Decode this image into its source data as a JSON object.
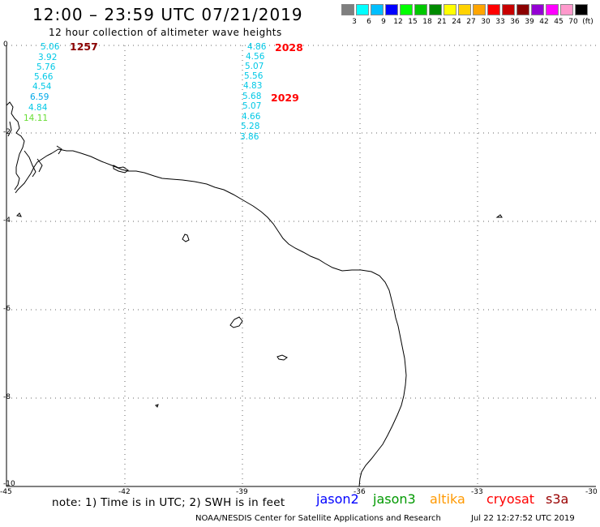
{
  "header": {
    "title": "12:00 – 23:59 UTC 07/21/2019",
    "subtitle": "12 hour collection of altimeter wave heights"
  },
  "scale": {
    "colors": [
      "#7f7f7f",
      "#00ffff",
      "#00bfff",
      "#0000ff",
      "#00ff00",
      "#00c800",
      "#008a00",
      "#ffff00",
      "#ffd200",
      "#ffa500",
      "#ff0000",
      "#c80000",
      "#8b0000",
      "#9400d3",
      "#ff00ff",
      "#ff99cc",
      "#000000"
    ],
    "labels": [
      "3",
      "6",
      "9",
      "12",
      "15",
      "18",
      "21",
      "24",
      "27",
      "30",
      "33",
      "36",
      "39",
      "42",
      "45",
      "70",
      "(ft)"
    ]
  },
  "axes": {
    "y_labels": [
      "0",
      "-2",
      "-4",
      "-6",
      "-8",
      "-10"
    ],
    "x_labels": [
      "-45",
      "-42",
      "-39",
      "-36",
      "-33",
      "-30"
    ]
  },
  "tracks": [
    {
      "time": "1257",
      "time_color": "#8b0000",
      "values": [
        {
          "v": "5.06",
          "c": "#00c8e6"
        },
        {
          "v": "3.92",
          "c": "#00c8e6"
        },
        {
          "v": "5.76",
          "c": "#00c8e6"
        },
        {
          "v": "5.66",
          "c": "#00c8e6"
        },
        {
          "v": "4.54",
          "c": "#00c8e6"
        },
        {
          "v": "6.59",
          "c": "#00a8e8"
        },
        {
          "v": "4.84",
          "c": "#00c8e6"
        },
        {
          "v": "14.11",
          "c": "#66dd33"
        }
      ]
    },
    {
      "time": "2028",
      "time2": "2029",
      "time_color": "#ff0000",
      "values": [
        {
          "v": "4.86",
          "c": "#00c8e6"
        },
        {
          "v": "4.56",
          "c": "#00c8e6"
        },
        {
          "v": "5.07",
          "c": "#00c8e6"
        },
        {
          "v": "5.56",
          "c": "#00c8e6"
        },
        {
          "v": "4.83",
          "c": "#00c8e6"
        },
        {
          "v": "5.68",
          "c": "#00c8e6"
        },
        {
          "v": "5.07",
          "c": "#00c8e6"
        },
        {
          "v": "4.66",
          "c": "#00c8e6"
        },
        {
          "v": "5.28",
          "c": "#00c8e6"
        },
        {
          "v": "3.86",
          "c": "#00c8e6"
        }
      ]
    }
  ],
  "note": "note: 1) Time is in UTC; 2) SWH is in feet",
  "satellites": [
    {
      "name": "jason2",
      "color": "#0000ff"
    },
    {
      "name": "jason3",
      "color": "#009900"
    },
    {
      "name": "altika",
      "color": "#ff9900"
    },
    {
      "name": "cryosat",
      "color": "#ff0000"
    },
    {
      "name": "s3a",
      "color": "#990000"
    }
  ],
  "footer": {
    "source": "NOAA/NESDIS Center for Satellite Applications and Research",
    "timestamp": "Jul 22 12:27:52 UTC 2019"
  }
}
